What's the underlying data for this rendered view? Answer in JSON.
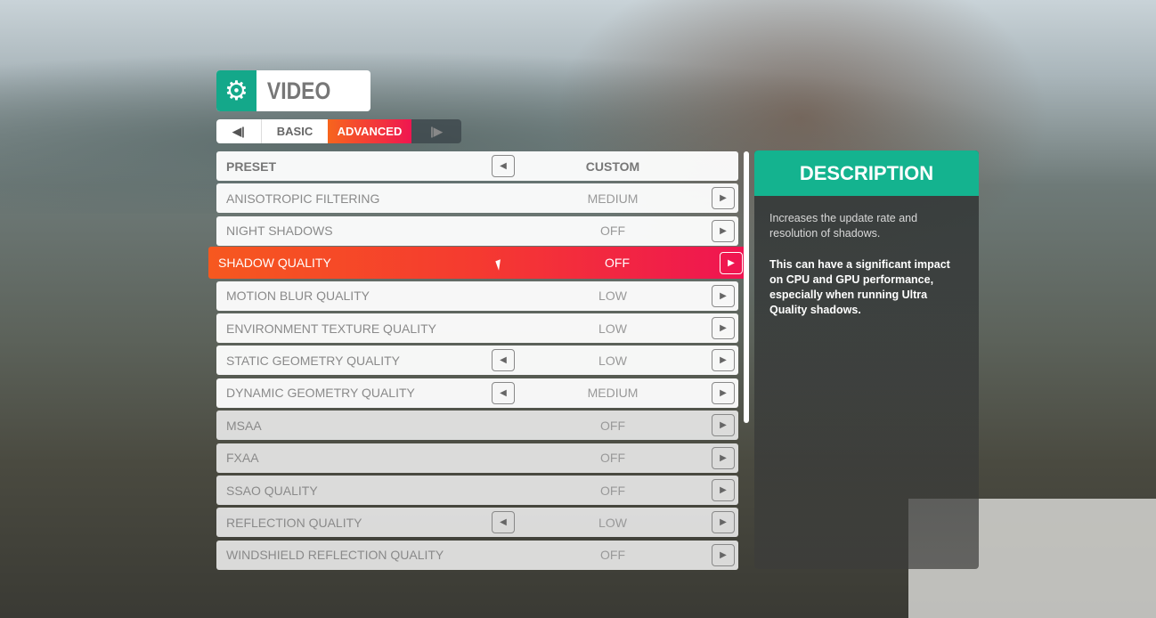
{
  "header": {
    "title": "VIDEO",
    "icon": "gear-icon"
  },
  "tabs": {
    "prev_icon": "◀|",
    "items": [
      {
        "label": "BASIC",
        "active": false
      },
      {
        "label": "ADVANCED",
        "active": true
      }
    ],
    "next_icon": "|▶"
  },
  "accent": {
    "teal": "#14a88a",
    "highlight_start": "#f6581f",
    "highlight_end": "#ef1452"
  },
  "settings": [
    {
      "label": "PRESET",
      "value": "CUSTOM",
      "left": true,
      "right": false
    },
    {
      "label": "ANISOTROPIC FILTERING",
      "value": "MEDIUM",
      "left": false,
      "right": true
    },
    {
      "label": "NIGHT SHADOWS",
      "value": "OFF",
      "left": false,
      "right": true
    },
    {
      "label": "SHADOW QUALITY",
      "value": "OFF",
      "left": false,
      "right": true,
      "selected": true
    },
    {
      "label": "MOTION BLUR QUALITY",
      "value": "LOW",
      "left": false,
      "right": true
    },
    {
      "label": "ENVIRONMENT TEXTURE QUALITY",
      "value": "LOW",
      "left": false,
      "right": true
    },
    {
      "label": "STATIC GEOMETRY QUALITY",
      "value": "LOW",
      "left": true,
      "right": true
    },
    {
      "label": "DYNAMIC GEOMETRY QUALITY",
      "value": "MEDIUM",
      "left": true,
      "right": true
    },
    {
      "label": "MSAA",
      "value": "OFF",
      "left": false,
      "right": true
    },
    {
      "label": "FXAA",
      "value": "OFF",
      "left": false,
      "right": true
    },
    {
      "label": "SSAO QUALITY",
      "value": "OFF",
      "left": false,
      "right": true
    },
    {
      "label": "REFLECTION QUALITY",
      "value": "LOW",
      "left": true,
      "right": true
    },
    {
      "label": "WINDSHIELD REFLECTION QUALITY",
      "value": "OFF",
      "left": false,
      "right": true
    }
  ],
  "description": {
    "title": "DESCRIPTION",
    "text": "Increases the update rate and resolution of shadows.",
    "warning": "This can have a significant impact on CPU and GPU performance, especially when running Ultra Quality shadows."
  }
}
